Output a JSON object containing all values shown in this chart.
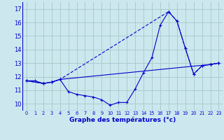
{
  "title": "Graphe des températures (°c)",
  "bg_color": "#cce8ee",
  "grid_color": "#aacccc",
  "line_color": "#0000cc",
  "xlim": [
    -0.5,
    23.5
  ],
  "ylim": [
    9.5,
    17.5
  ],
  "yticks": [
    10,
    11,
    12,
    13,
    14,
    15,
    16,
    17
  ],
  "xticks": [
    0,
    1,
    2,
    3,
    4,
    5,
    6,
    7,
    8,
    9,
    10,
    11,
    12,
    13,
    14,
    15,
    16,
    17,
    18,
    19,
    20,
    21,
    22,
    23
  ],
  "line1_x": [
    0,
    1,
    2,
    3,
    4,
    5,
    6,
    7,
    8,
    9,
    10,
    11,
    12,
    13,
    14,
    15,
    16,
    17,
    18,
    19,
    20,
    21,
    22,
    23
  ],
  "line1_y": [
    11.7,
    11.7,
    11.5,
    11.6,
    11.8,
    10.9,
    10.7,
    10.6,
    10.5,
    10.3,
    9.9,
    10.1,
    10.1,
    11.1,
    12.3,
    13.4,
    15.8,
    16.8,
    16.1,
    14.1,
    12.2,
    12.8,
    12.9,
    13.0
  ],
  "line2_x": [
    0,
    2,
    3,
    4,
    22,
    23
  ],
  "line2_y": [
    11.7,
    11.5,
    11.6,
    11.8,
    12.9,
    13.0
  ],
  "line3_x": [
    0,
    2,
    3,
    4,
    17,
    18,
    19,
    20,
    21,
    22,
    23
  ],
  "line3_y": [
    11.7,
    11.5,
    11.6,
    11.8,
    16.8,
    16.1,
    14.1,
    12.2,
    12.8,
    12.9,
    13.0
  ]
}
